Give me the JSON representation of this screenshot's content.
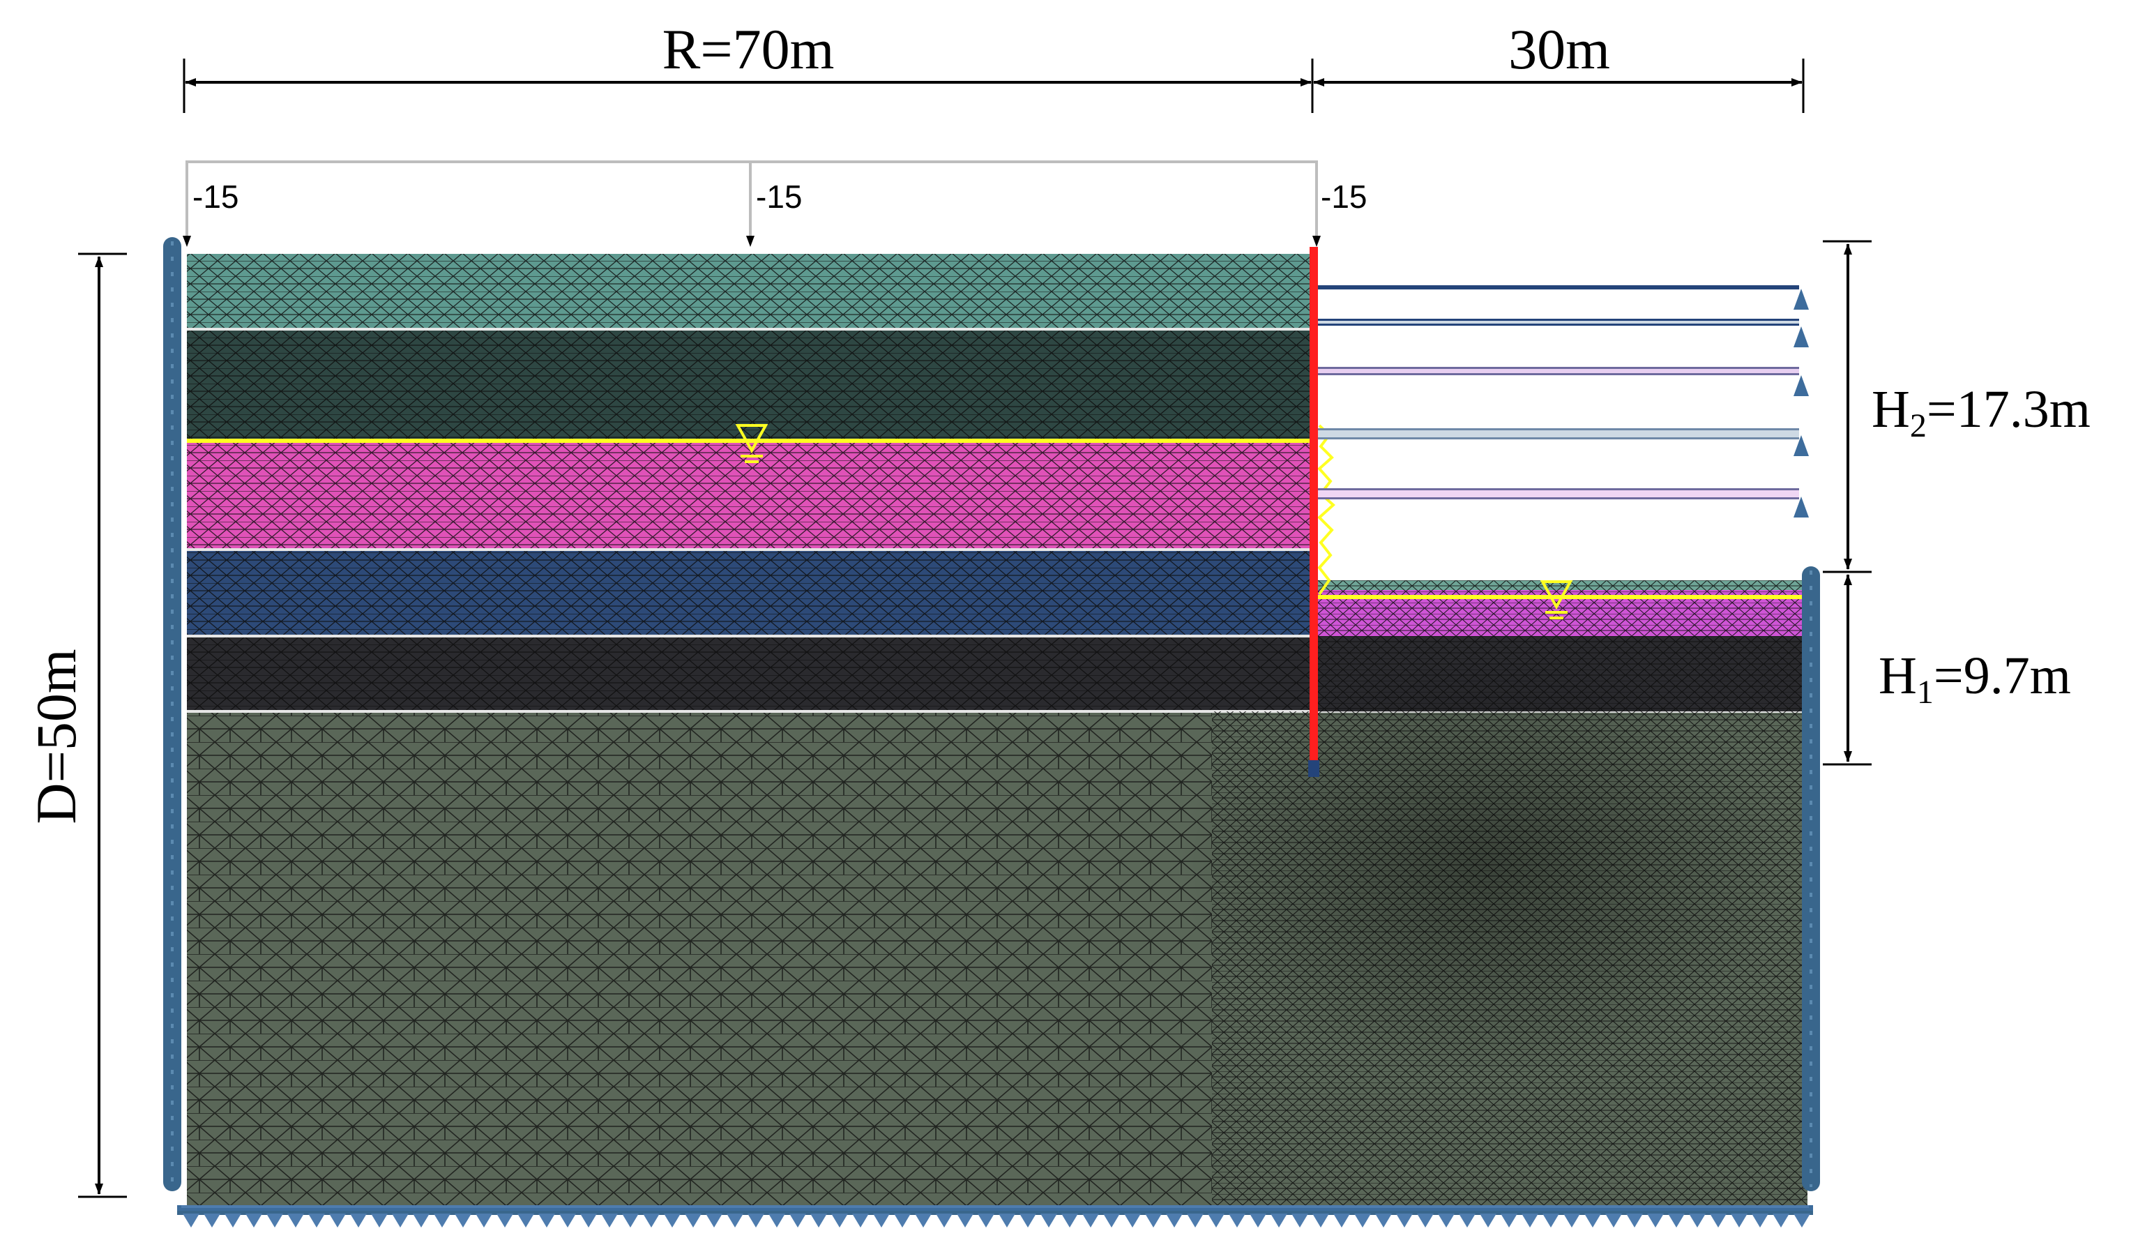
{
  "dimensions": {
    "radius_label": "R=70m",
    "right_width_label": "30m",
    "depth_label": "D=50m",
    "h2_label": {
      "main": "H",
      "sub": "2",
      "tail": "=17.3m"
    },
    "h1_label": {
      "main": "H",
      "sub": "1",
      "tail": "=9.7m"
    }
  },
  "surface_load": {
    "labels": [
      "-15",
      "-15",
      "-15"
    ]
  },
  "colors": {
    "layer_1": "#5e9a90",
    "layer_2": "#2e4743",
    "layer_3": "#e052b8",
    "layer_4": "#2d4a78",
    "layer_5": "#2a2a2e",
    "layer_6": "#5a6758",
    "excavated_sand": "#cf55d6",
    "water_table": "#ffff22",
    "wall": "#ff1f1f",
    "support_bar": "#24447a",
    "support_light": "#cdd9e4",
    "boundary_circle": "#39668c",
    "boundary_triangle": "#4e7cae",
    "mesh_line": "#0d0d0d"
  },
  "icons": {
    "water_table_left": "inverted-triangle-icon",
    "water_table_right": "inverted-triangle-icon",
    "strut_support": "triangle-support-icon",
    "roller": "circle-roller-icon"
  }
}
